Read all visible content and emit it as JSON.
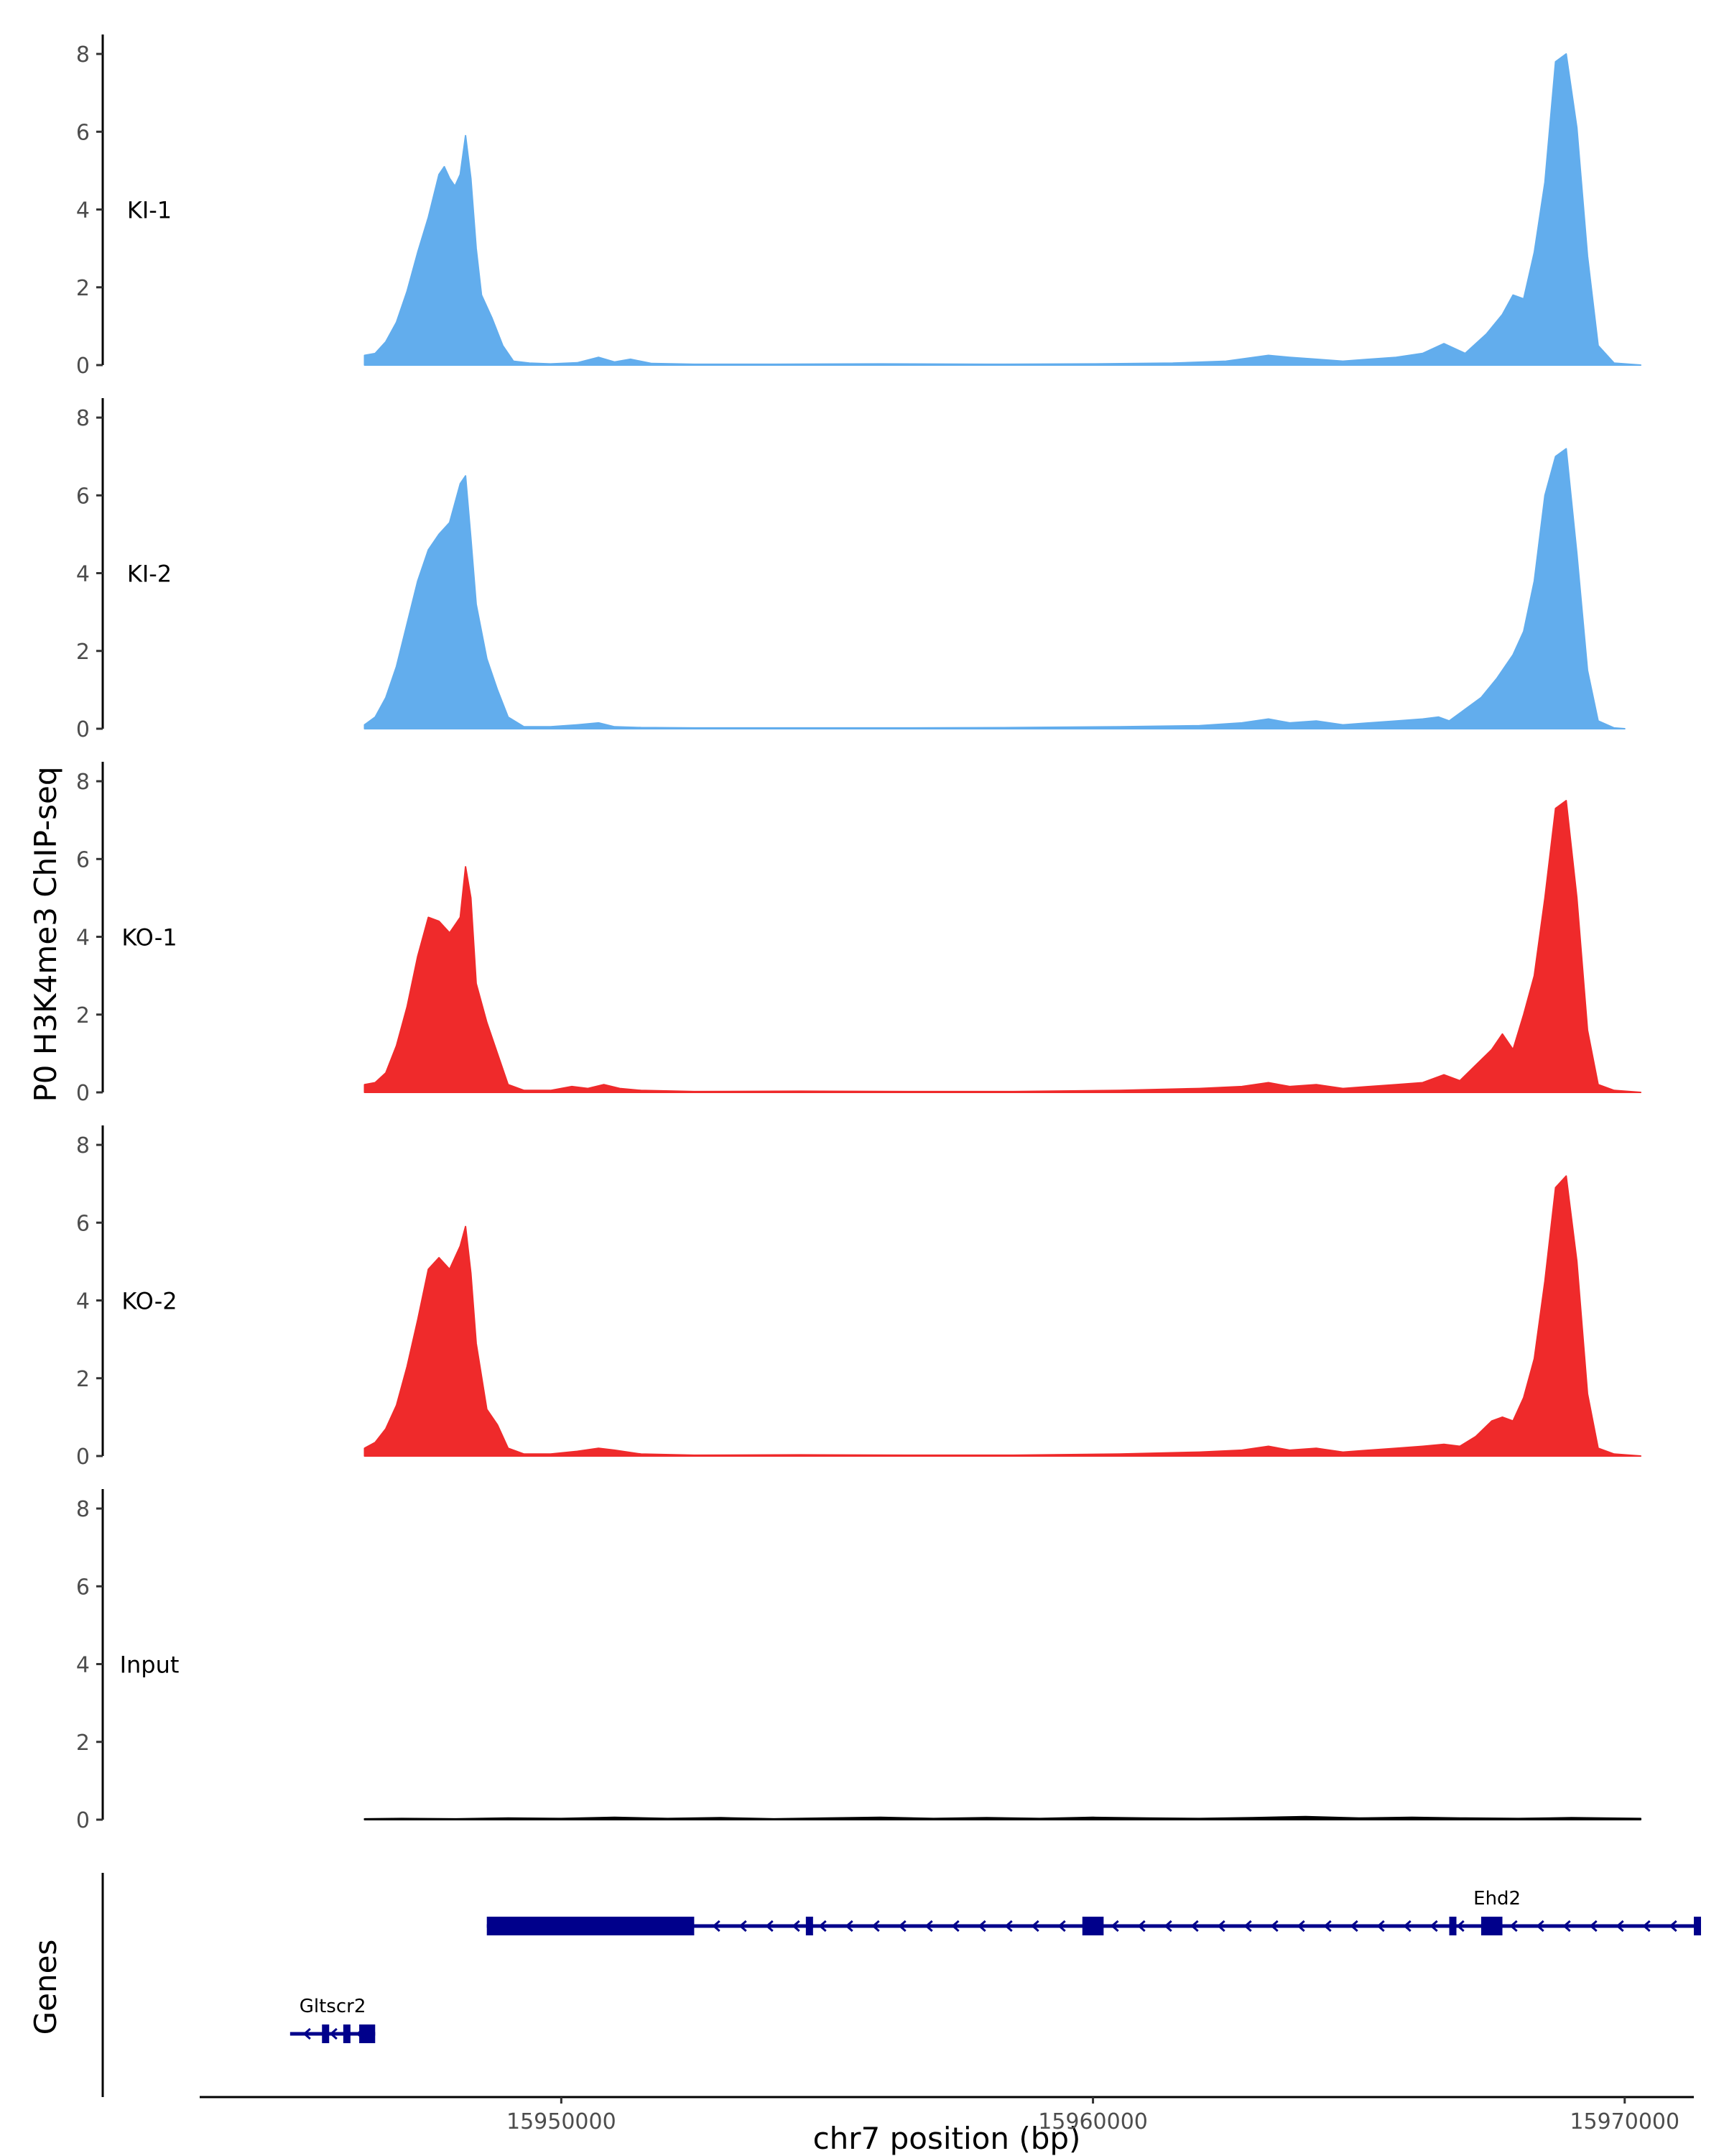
{
  "chart_data": {
    "type": "area",
    "ylabel": "P0 H3K4me3 ChIP-seq",
    "xlabel": "chr7 position (bp)",
    "genes_label": "Genes",
    "ylim": [
      0,
      8.5
    ],
    "yticks": [
      0,
      2,
      4,
      6,
      8
    ],
    "xlim": [
      15943200,
      15971300
    ],
    "xticks": [
      15950000,
      15960000,
      15970000
    ],
    "xtick_labels": [
      "15950000",
      "15960000",
      "15970000"
    ],
    "grid": false,
    "tracks": [
      {
        "name": "KI-1",
        "color": "#62aded",
        "points": [
          [
            15946300,
            0.25
          ],
          [
            15946500,
            0.3
          ],
          [
            15946700,
            0.6
          ],
          [
            15946900,
            1.1
          ],
          [
            15947100,
            1.9
          ],
          [
            15947300,
            2.9
          ],
          [
            15947500,
            3.8
          ],
          [
            15947700,
            4.9
          ],
          [
            15947800,
            5.1
          ],
          [
            15947900,
            4.8
          ],
          [
            15948000,
            4.6
          ],
          [
            15948100,
            4.9
          ],
          [
            15948200,
            5.9
          ],
          [
            15948300,
            4.8
          ],
          [
            15948400,
            3.0
          ],
          [
            15948500,
            1.8
          ],
          [
            15948700,
            1.2
          ],
          [
            15948900,
            0.5
          ],
          [
            15949100,
            0.1
          ],
          [
            15949400,
            0.05
          ],
          [
            15949800,
            0.03
          ],
          [
            15950300,
            0.06
          ],
          [
            15950700,
            0.2
          ],
          [
            15951000,
            0.08
          ],
          [
            15951300,
            0.15
          ],
          [
            15951700,
            0.04
          ],
          [
            15952500,
            0.02
          ],
          [
            15954000,
            0.02
          ],
          [
            15956000,
            0.03
          ],
          [
            15958000,
            0.02
          ],
          [
            15960000,
            0.03
          ],
          [
            15961500,
            0.05
          ],
          [
            15962500,
            0.1
          ],
          [
            15963300,
            0.25
          ],
          [
            15963700,
            0.2
          ],
          [
            15964200,
            0.15
          ],
          [
            15964700,
            0.1
          ],
          [
            15965200,
            0.15
          ],
          [
            15965700,
            0.2
          ],
          [
            15966200,
            0.3
          ],
          [
            15966600,
            0.55
          ],
          [
            15967000,
            0.3
          ],
          [
            15967400,
            0.8
          ],
          [
            15967700,
            1.3
          ],
          [
            15967900,
            1.8
          ],
          [
            15968100,
            1.7
          ],
          [
            15968300,
            2.9
          ],
          [
            15968500,
            4.7
          ],
          [
            15968700,
            7.8
          ],
          [
            15968900,
            8.0
          ],
          [
            15969100,
            6.1
          ],
          [
            15969300,
            2.8
          ],
          [
            15969500,
            0.5
          ],
          [
            15969800,
            0.05
          ],
          [
            15970300,
            0.0
          ]
        ]
      },
      {
        "name": "KI-2",
        "color": "#62aded",
        "points": [
          [
            15946300,
            0.1
          ],
          [
            15946500,
            0.3
          ],
          [
            15946700,
            0.8
          ],
          [
            15946900,
            1.6
          ],
          [
            15947100,
            2.7
          ],
          [
            15947300,
            3.8
          ],
          [
            15947500,
            4.6
          ],
          [
            15947700,
            5.0
          ],
          [
            15947900,
            5.3
          ],
          [
            15948100,
            6.3
          ],
          [
            15948200,
            6.5
          ],
          [
            15948300,
            4.9
          ],
          [
            15948400,
            3.2
          ],
          [
            15948600,
            1.8
          ],
          [
            15948800,
            1.0
          ],
          [
            15949000,
            0.3
          ],
          [
            15949300,
            0.05
          ],
          [
            15949800,
            0.05
          ],
          [
            15950300,
            0.1
          ],
          [
            15950700,
            0.15
          ],
          [
            15951000,
            0.05
          ],
          [
            15951500,
            0.03
          ],
          [
            15952500,
            0.02
          ],
          [
            15954500,
            0.02
          ],
          [
            15956500,
            0.02
          ],
          [
            15958500,
            0.03
          ],
          [
            15960500,
            0.05
          ],
          [
            15962000,
            0.08
          ],
          [
            15962800,
            0.15
          ],
          [
            15963300,
            0.25
          ],
          [
            15963700,
            0.15
          ],
          [
            15964200,
            0.2
          ],
          [
            15964700,
            0.1
          ],
          [
            15965200,
            0.15
          ],
          [
            15965700,
            0.2
          ],
          [
            15966200,
            0.25
          ],
          [
            15966500,
            0.3
          ],
          [
            15966700,
            0.2
          ],
          [
            15967000,
            0.5
          ],
          [
            15967300,
            0.8
          ],
          [
            15967600,
            1.3
          ],
          [
            15967900,
            1.9
          ],
          [
            15968100,
            2.5
          ],
          [
            15968300,
            3.8
          ],
          [
            15968500,
            6.0
          ],
          [
            15968700,
            7.0
          ],
          [
            15968900,
            7.2
          ],
          [
            15969100,
            4.5
          ],
          [
            15969300,
            1.5
          ],
          [
            15969500,
            0.2
          ],
          [
            15969800,
            0.02
          ],
          [
            15970000,
            0.0
          ]
        ]
      },
      {
        "name": "KO-1",
        "color": "#ef2a2b",
        "points": [
          [
            15946300,
            0.2
          ],
          [
            15946500,
            0.25
          ],
          [
            15946700,
            0.5
          ],
          [
            15946900,
            1.2
          ],
          [
            15947100,
            2.2
          ],
          [
            15947300,
            3.5
          ],
          [
            15947500,
            4.5
          ],
          [
            15947700,
            4.4
          ],
          [
            15947900,
            4.1
          ],
          [
            15948100,
            4.5
          ],
          [
            15948200,
            5.8
          ],
          [
            15948300,
            5.0
          ],
          [
            15948400,
            2.8
          ],
          [
            15948600,
            1.8
          ],
          [
            15948800,
            1.0
          ],
          [
            15949000,
            0.2
          ],
          [
            15949300,
            0.05
          ],
          [
            15949800,
            0.05
          ],
          [
            15950200,
            0.15
          ],
          [
            15950500,
            0.1
          ],
          [
            15950800,
            0.2
          ],
          [
            15951100,
            0.1
          ],
          [
            15951500,
            0.05
          ],
          [
            15952500,
            0.02
          ],
          [
            15954500,
            0.03
          ],
          [
            15956500,
            0.02
          ],
          [
            15958500,
            0.02
          ],
          [
            15960500,
            0.05
          ],
          [
            15962000,
            0.1
          ],
          [
            15962800,
            0.15
          ],
          [
            15963300,
            0.25
          ],
          [
            15963700,
            0.15
          ],
          [
            15964200,
            0.2
          ],
          [
            15964700,
            0.1
          ],
          [
            15965200,
            0.15
          ],
          [
            15965700,
            0.2
          ],
          [
            15966200,
            0.25
          ],
          [
            15966600,
            0.45
          ],
          [
            15966900,
            0.3
          ],
          [
            15967200,
            0.7
          ],
          [
            15967500,
            1.1
          ],
          [
            15967700,
            1.5
          ],
          [
            15967900,
            1.1
          ],
          [
            15968100,
            2.0
          ],
          [
            15968300,
            3.0
          ],
          [
            15968500,
            5.0
          ],
          [
            15968700,
            7.3
          ],
          [
            15968900,
            7.5
          ],
          [
            15969100,
            5.0
          ],
          [
            15969300,
            1.6
          ],
          [
            15969500,
            0.2
          ],
          [
            15969800,
            0.05
          ],
          [
            15970300,
            0.0
          ]
        ]
      },
      {
        "name": "KO-2",
        "color": "#ef2a2b",
        "points": [
          [
            15946300,
            0.2
          ],
          [
            15946500,
            0.35
          ],
          [
            15946700,
            0.7
          ],
          [
            15946900,
            1.3
          ],
          [
            15947100,
            2.3
          ],
          [
            15947300,
            3.5
          ],
          [
            15947500,
            4.8
          ],
          [
            15947700,
            5.1
          ],
          [
            15947900,
            4.8
          ],
          [
            15948100,
            5.4
          ],
          [
            15948200,
            5.9
          ],
          [
            15948300,
            4.7
          ],
          [
            15948400,
            2.9
          ],
          [
            15948600,
            1.2
          ],
          [
            15948800,
            0.8
          ],
          [
            15949000,
            0.2
          ],
          [
            15949300,
            0.05
          ],
          [
            15949800,
            0.05
          ],
          [
            15950300,
            0.12
          ],
          [
            15950700,
            0.2
          ],
          [
            15951000,
            0.15
          ],
          [
            15951500,
            0.05
          ],
          [
            15952500,
            0.02
          ],
          [
            15954500,
            0.03
          ],
          [
            15956500,
            0.02
          ],
          [
            15958500,
            0.02
          ],
          [
            15960500,
            0.05
          ],
          [
            15962000,
            0.1
          ],
          [
            15962800,
            0.15
          ],
          [
            15963300,
            0.25
          ],
          [
            15963700,
            0.15
          ],
          [
            15964200,
            0.2
          ],
          [
            15964700,
            0.1
          ],
          [
            15965200,
            0.15
          ],
          [
            15965700,
            0.2
          ],
          [
            15966200,
            0.25
          ],
          [
            15966600,
            0.3
          ],
          [
            15966900,
            0.25
          ],
          [
            15967200,
            0.5
          ],
          [
            15967500,
            0.9
          ],
          [
            15967700,
            1.0
          ],
          [
            15967900,
            0.9
          ],
          [
            15968100,
            1.5
          ],
          [
            15968300,
            2.5
          ],
          [
            15968500,
            4.5
          ],
          [
            15968700,
            6.9
          ],
          [
            15968900,
            7.2
          ],
          [
            15969100,
            5.0
          ],
          [
            15969300,
            1.6
          ],
          [
            15969500,
            0.2
          ],
          [
            15969800,
            0.05
          ],
          [
            15970300,
            0.0
          ]
        ]
      },
      {
        "name": "Input",
        "color": "#000000",
        "points": [
          [
            15946300,
            0.02
          ],
          [
            15947000,
            0.03
          ],
          [
            15948000,
            0.02
          ],
          [
            15949000,
            0.04
          ],
          [
            15950000,
            0.03
          ],
          [
            15951000,
            0.06
          ],
          [
            15952000,
            0.03
          ],
          [
            15953000,
            0.05
          ],
          [
            15954000,
            0.02
          ],
          [
            15955000,
            0.04
          ],
          [
            15956000,
            0.06
          ],
          [
            15957000,
            0.03
          ],
          [
            15958000,
            0.05
          ],
          [
            15959000,
            0.03
          ],
          [
            15960000,
            0.06
          ],
          [
            15961000,
            0.04
          ],
          [
            15962000,
            0.03
          ],
          [
            15963000,
            0.05
          ],
          [
            15964000,
            0.08
          ],
          [
            15965000,
            0.04
          ],
          [
            15966000,
            0.06
          ],
          [
            15967000,
            0.04
          ],
          [
            15968000,
            0.03
          ],
          [
            15969000,
            0.05
          ],
          [
            15970300,
            0.03
          ]
        ]
      }
    ],
    "genes": [
      {
        "name": "Ehd2",
        "strand": "-",
        "row": 0,
        "color": "#00008b",
        "start": 15948600,
        "end": 15971800,
        "label_pos": 15967600,
        "exons": [
          [
            15948600,
            15952500
          ],
          [
            15954600,
            15954700
          ],
          [
            15959800,
            15960200
          ],
          [
            15966700,
            15966800
          ],
          [
            15967300,
            15967700
          ],
          [
            15971700,
            15971800
          ]
        ]
      },
      {
        "name": "Gltscr2",
        "strand": "-",
        "row": 1,
        "color": "#00008b",
        "start": 15944900,
        "end": 15946500,
        "label_pos": 15945700,
        "exons": [
          [
            15945500,
            15945540
          ],
          [
            15945900,
            15945950
          ],
          [
            15946200,
            15946500
          ]
        ]
      }
    ]
  }
}
